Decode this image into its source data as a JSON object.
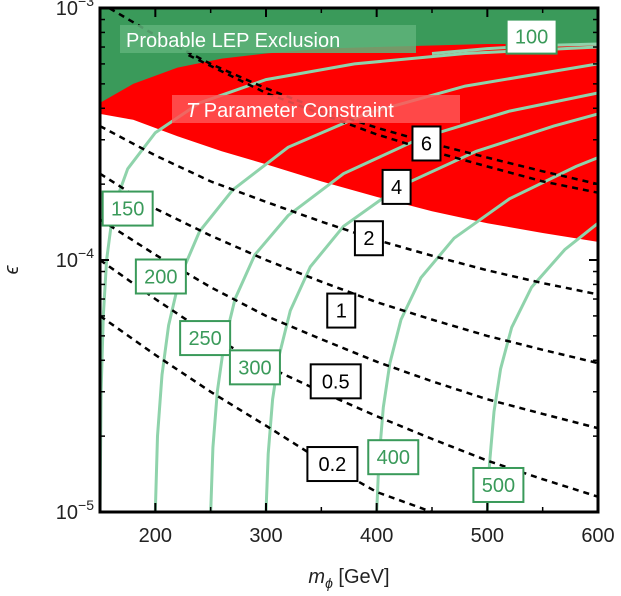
{
  "chart_data": {
    "type": "line",
    "xlabel_symbol": "m",
    "xlabel_subscript": "ϕ",
    "xlabel_unit": "[GeV]",
    "ylabel": "ϵ",
    "xlim": [
      150,
      600
    ],
    "ylim": [
      1e-05,
      0.001
    ],
    "yscale": "log",
    "x_ticks": [
      {
        "value": 200,
        "label": "200"
      },
      {
        "value": 300,
        "label": "300"
      },
      {
        "value": 400,
        "label": "400"
      },
      {
        "value": 500,
        "label": "500"
      },
      {
        "value": 600,
        "label": "600"
      }
    ],
    "y_ticks": [
      {
        "value": 1e-05,
        "mantissa": "10",
        "exponent": "−5"
      },
      {
        "value": 0.0001,
        "mantissa": "10",
        "exponent": "−4"
      },
      {
        "value": 0.001,
        "mantissa": "10",
        "exponent": "−3"
      }
    ],
    "regions": [
      {
        "name": "Probable LEP Exclusion",
        "label": "Probable LEP Exclusion",
        "color": "#3a9a5a",
        "lower_boundary_x": [
          150,
          180,
          220,
          260,
          300,
          350,
          400,
          450,
          500,
          550,
          600
        ],
        "lower_boundary_y": [
          0.00042,
          0.0005,
          0.00058,
          0.00063,
          0.00066,
          0.00069,
          0.0007,
          0.00071,
          0.00072,
          0.00072,
          0.00072
        ]
      },
      {
        "name": "T Parameter Constraint",
        "label_italic": "T",
        "label_rest": " Parameter Constraint",
        "color": "#ff0000",
        "lower_boundary_x": [
          150,
          180,
          220,
          260,
          300,
          350,
          400,
          450,
          500,
          550,
          600
        ],
        "lower_boundary_y": [
          0.00038,
          0.00036,
          0.00031,
          0.00027,
          0.00024,
          0.000205,
          0.000178,
          0.000156,
          0.00014,
          0.000128,
          0.000118
        ]
      }
    ],
    "dashed_contours": {
      "color": "#000000",
      "curves": [
        {
          "label": "0.2",
          "x": [
            150,
            200,
            250,
            300,
            350,
            400,
            450
          ],
          "y": [
            6e-05,
            4.2e-05,
            3e-05,
            2.2e-05,
            1.6e-05,
            1.2e-05,
            1e-05
          ],
          "label_x": 360,
          "label_y": 1.55e-05
        },
        {
          "label": "0.5",
          "x": [
            150,
            200,
            250,
            300,
            350,
            400,
            450,
            500,
            550,
            600
          ],
          "y": [
            0.0001,
            7e-05,
            5e-05,
            3.8e-05,
            3e-05,
            2.4e-05,
            1.95e-05,
            1.6e-05,
            1.35e-05,
            1.15e-05
          ],
          "label_x": 363,
          "label_y": 3.3e-05
        },
        {
          "label": "1",
          "x": [
            150,
            200,
            250,
            300,
            350,
            400,
            450,
            500,
            550,
            600
          ],
          "y": [
            0.000145,
            0.000105,
            7.8e-05,
            6e-05,
            4.85e-05,
            3.95e-05,
            3.3e-05,
            2.8e-05,
            2.45e-05,
            2.15e-05
          ],
          "label_x": 368,
          "label_y": 6.3e-05
        },
        {
          "label": "2",
          "x": [
            150,
            200,
            250,
            300,
            350,
            400,
            450,
            500,
            550,
            600
          ],
          "y": [
            0.00022,
            0.00016,
            0.000125,
            0.0001,
            8.2e-05,
            6.8e-05,
            5.8e-05,
            5e-05,
            4.4e-05,
            3.9e-05
          ],
          "label_x": 393,
          "label_y": 0.000122
        },
        {
          "label": "4",
          "x": [
            150,
            200,
            250,
            300,
            350,
            400,
            450,
            500,
            550,
            600
          ],
          "y": [
            0.00034,
            0.00026,
            0.000205,
            0.00017,
            0.000142,
            0.00012,
            0.000104,
            9.1e-05,
            8.1e-05,
            7.3e-05
          ],
          "label_x": 418,
          "label_y": 0.000195
        },
        {
          "label": "6",
          "x": [
            230,
            300,
            350,
            400,
            450,
            500,
            550,
            600
          ],
          "y": [
            0.00065,
            0.00046,
            0.00038,
            0.000315,
            0.00027,
            0.000235,
            0.000205,
            0.000185
          ],
          "label_x": 445,
          "label_y": 0.00029
        },
        {
          "label": "",
          "x": [
            150,
            200,
            250,
            300,
            350,
            400,
            450,
            500,
            550,
            600
          ],
          "y": [
            0.00105,
            0.00078,
            0.0006,
            0.00048,
            0.000395,
            0.000335,
            0.00029,
            0.000255,
            0.000225,
            0.0002
          ],
          "label_x": null,
          "label_y": null
        }
      ]
    },
    "mass_contours": {
      "color": "#8fd3ab",
      "curves": [
        {
          "label": "150",
          "x": [
            150,
            151,
            153,
            156,
            162,
            175,
            200,
            240,
            300,
            380,
            480,
            600
          ],
          "y": [
            1e-05,
            3e-05,
            6e-05,
            0.0001,
            0.00016,
            0.00023,
            0.00032,
            0.00042,
            0.00052,
            0.0006,
            0.00066,
            0.0007
          ],
          "label_x": 175,
          "label_y": 0.00016
        },
        {
          "label": "200",
          "x": [
            200,
            202,
            206,
            212,
            222,
            240,
            270,
            320,
            390,
            480,
            600
          ],
          "y": [
            1e-05,
            2e-05,
            3.5e-05,
            5.5e-05,
            8.5e-05,
            0.00013,
            0.00019,
            0.00028,
            0.00038,
            0.00049,
            0.0006
          ],
          "label_x": 205,
          "label_y": 8.6e-05
        },
        {
          "label": "250",
          "x": [
            250,
            252,
            256,
            262,
            272,
            290,
            320,
            370,
            440,
            520,
            600
          ],
          "y": [
            1e-05,
            1.8e-05,
            3e-05,
            4.6e-05,
            7e-05,
            0.000105,
            0.00015,
            0.00022,
            0.000305,
            0.00039,
            0.00046
          ],
          "label_x": 245,
          "label_y": 4.9e-05
        },
        {
          "label": "300",
          "x": [
            300,
            302,
            306,
            312,
            322,
            340,
            370,
            420,
            490,
            560,
            600
          ],
          "y": [
            1e-05,
            1.7e-05,
            2.8e-05,
            4.2e-05,
            6.3e-05,
            9.4e-05,
            0.000136,
            0.000195,
            0.00027,
            0.00034,
            0.00038
          ],
          "label_x": 290,
          "label_y": 3.75e-05
        },
        {
          "label": "400",
          "x": [
            400,
            402,
            406,
            412,
            422,
            440,
            470,
            520,
            580,
            600
          ],
          "y": [
            1e-05,
            1.6e-05,
            2.6e-05,
            3.9e-05,
            5.8e-05,
            8.5e-05,
            0.000122,
            0.000175,
            0.000235,
            0.000255
          ],
          "label_x": 415,
          "label_y": 1.65e-05
        },
        {
          "label": "500",
          "x": [
            500,
            502,
            506,
            512,
            522,
            540,
            570,
            600
          ],
          "y": [
            1e-05,
            1.55e-05,
            2.5e-05,
            3.7e-05,
            5.4e-05,
            7.8e-05,
            0.00011,
            0.00014
          ],
          "label_x": 510,
          "label_y": 1.28e-05
        },
        {
          "label": "100",
          "x": [
            450,
            500,
            550,
            600
          ],
          "y": [
            0.00066,
            0.00069,
            0.00071,
            0.00072
          ],
          "label_x": 540,
          "label_y": 0.00077
        }
      ]
    },
    "colors": {
      "lep": "#3a9a5a",
      "tparam": "#ff0000",
      "mass_line": "#8fd3ab",
      "mass_label": "#3a9a5a",
      "dashed": "#000000"
    }
  }
}
